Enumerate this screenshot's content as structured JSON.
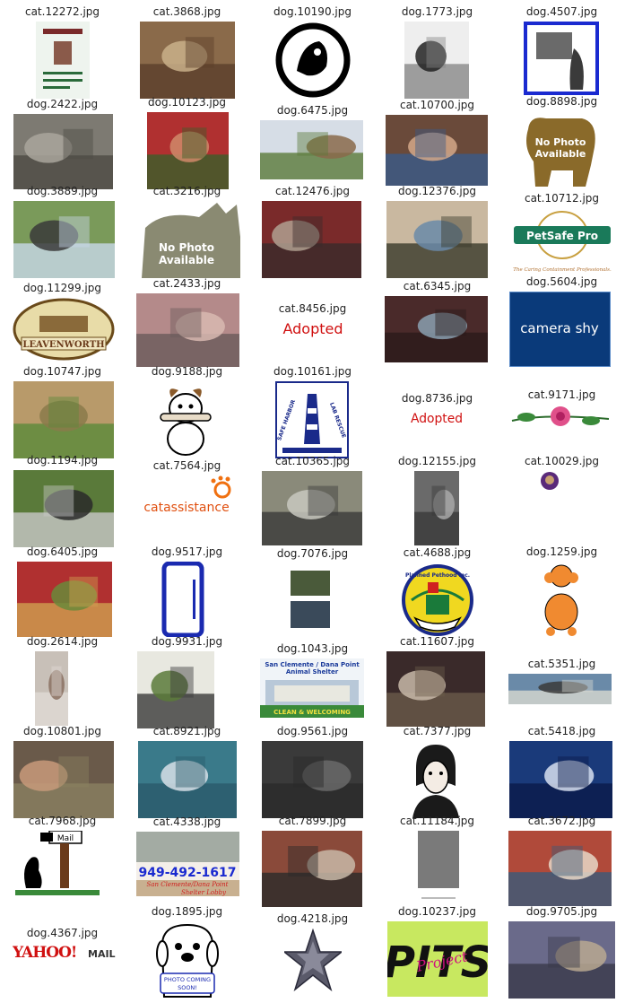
{
  "grid": {
    "columns": 5,
    "items": [
      {
        "label": "cat.12272.jpg",
        "art": "flyer"
      },
      {
        "label": "cat.3868.jpg",
        "art": "photo",
        "colors": [
          "#8a6a4a",
          "#c9b08a",
          "#5a3f2a"
        ]
      },
      {
        "label": "dog.10190.jpg",
        "art": "circle-logo"
      },
      {
        "label": "dog.1773.jpg",
        "art": "photo",
        "colors": [
          "#eeeeee",
          "#222222",
          "#888888"
        ]
      },
      {
        "label": "dog.4507.jpg",
        "art": "frame-sketch"
      },
      {
        "label": "dog.2422.jpg",
        "art": "photo",
        "colors": [
          "#7d7a72",
          "#a9a69c",
          "#4e4b44"
        ]
      },
      {
        "label": "dog.10123.jpg",
        "art": "photo",
        "colors": [
          "#b03030",
          "#d08a6a",
          "#3a5f2a"
        ]
      },
      {
        "label": "dog.6475.jpg",
        "art": "photo",
        "colors": [
          "#d6dde6",
          "#8a6a4a",
          "#5a7a3a"
        ]
      },
      {
        "label": "cat.10700.jpg",
        "art": "photo",
        "colors": [
          "#6a4a3a",
          "#d4a88a",
          "#3a5a8a"
        ]
      },
      {
        "label": "dog.8898.jpg",
        "art": "nophoto-dog",
        "text": [
          "No Photo",
          "Available"
        ]
      },
      {
        "label": "dog.3889.jpg",
        "art": "photo",
        "colors": [
          "#7a9a5a",
          "#3a3a3a",
          "#c8d8e8"
        ]
      },
      {
        "label": "cat.3216.jpg",
        "art": "nophoto-cat",
        "text": [
          "No Photo",
          "Available"
        ]
      },
      {
        "label": "cat.12476.jpg",
        "art": "photo",
        "colors": [
          "#7a2a2a",
          "#b0a090",
          "#3a2a2a"
        ]
      },
      {
        "label": "dog.12376.jpg",
        "art": "photo",
        "colors": [
          "#c9b8a0",
          "#6a8aa8",
          "#3a3a2a"
        ]
      },
      {
        "label": "cat.10712.jpg",
        "art": "petsafe",
        "text": [
          "PetSafe Pro",
          "The Caring Containment Professionals."
        ]
      },
      {
        "label": "dog.11299.jpg",
        "art": "badge",
        "text": [
          "LEAVENWORTH"
        ]
      },
      {
        "label": "cat.2433.jpg",
        "art": "photo",
        "colors": [
          "#b48a8a",
          "#d8b8b0",
          "#6a5a5a"
        ]
      },
      {
        "label": "cat.8456.jpg",
        "art": "adopted",
        "text": [
          "Adopted"
        ]
      },
      {
        "label": "cat.6345.jpg",
        "art": "photo",
        "colors": [
          "#4a2a2a",
          "#8aa0b0",
          "#2a1a1a"
        ]
      },
      {
        "label": "dog.5604.jpg",
        "art": "camerashy",
        "text": [
          "camera shy"
        ]
      },
      {
        "label": "dog.10747.jpg",
        "art": "photo",
        "colors": [
          "#b89a6a",
          "#8a7a4a",
          "#5a8a3a"
        ]
      },
      {
        "label": "dog.9188.jpg",
        "art": "cartoon-dog"
      },
      {
        "label": "dog.10161.jpg",
        "art": "lighthouse",
        "text": [
          "SAFE HARBOR",
          "LAB RESCUE"
        ]
      },
      {
        "label": "dog.8736.jpg",
        "art": "adopted",
        "text": [
          "Adopted"
        ]
      },
      {
        "label": "cat.9171.jpg",
        "art": "rose"
      },
      {
        "label": "dog.1194.jpg",
        "art": "photo",
        "colors": [
          "#5a7a3a",
          "#2a2a2a",
          "#c8c8c8"
        ]
      },
      {
        "label": "cat.7564.jpg",
        "art": "catassistance",
        "text": [
          "catassistance"
        ]
      },
      {
        "label": "cat.10365.jpg",
        "art": "photo",
        "colors": [
          "#8a8a7a",
          "#c8c8c0",
          "#3a3a3a"
        ]
      },
      {
        "label": "dog.12155.jpg",
        "art": "photo",
        "colors": [
          "#6a6a6a",
          "#a8a8a8",
          "#3a3a3a"
        ]
      },
      {
        "label": "cat.10029.jpg",
        "art": "tiny"
      },
      {
        "label": "dog.6405.jpg",
        "art": "photo",
        "colors": [
          "#b03030",
          "#6a8a3a",
          "#d0a050"
        ]
      },
      {
        "label": "dog.9517.jpg",
        "art": "plate"
      },
      {
        "label": "dog.7076.jpg",
        "art": "photo-pair"
      },
      {
        "label": "cat.4688.jpg",
        "art": "planned",
        "text": [
          "Planned Pethood Inc."
        ]
      },
      {
        "label": "dog.1259.jpg",
        "art": "poodle"
      },
      {
        "label": "dog.2614.jpg",
        "art": "photo",
        "colors": [
          "#c8c0b8",
          "#8a7060",
          "#e0dad4"
        ]
      },
      {
        "label": "dog.9931.jpg",
        "art": "photo",
        "colors": [
          "#e8e8e0",
          "#5a7a3a",
          "#3a3a3a"
        ]
      },
      {
        "label": "dog.1043.jpg",
        "art": "shelter",
        "text": [
          "San Clemente / Dana Point",
          "Animal Shelter",
          "CLEAN & WELCOMING"
        ]
      },
      {
        "label": "cat.11607.jpg",
        "art": "photo",
        "colors": [
          "#3a2a2a",
          "#c8b8a8",
          "#6a5a4a"
        ]
      },
      {
        "label": "cat.5351.jpg",
        "art": "photo",
        "colors": [
          "#6a8aa8",
          "#3a3a3a",
          "#d8d8d0"
        ]
      },
      {
        "label": "dog.10801.jpg",
        "art": "photo",
        "colors": [
          "#6a5a4a",
          "#c89a7a",
          "#8a8060"
        ]
      },
      {
        "label": "cat.8921.jpg",
        "art": "photo",
        "colors": [
          "#3a7a8a",
          "#d8e0e8",
          "#2a5a6a"
        ]
      },
      {
        "label": "dog.9561.jpg",
        "art": "photo",
        "colors": [
          "#3a3a3a",
          "#6a6a6a",
          "#2a2a2a"
        ]
      },
      {
        "label": "cat.7377.jpg",
        "art": "portrait"
      },
      {
        "label": "cat.5418.jpg",
        "art": "photo",
        "colors": [
          "#1a3a7a",
          "#d8e0f0",
          "#0a1a4a"
        ]
      },
      {
        "label": "cat.7968.jpg",
        "art": "mailbox",
        "text": [
          "Mail"
        ]
      },
      {
        "label": "cat.4338.jpg",
        "art": "phone",
        "text": [
          "949-492-1617",
          "San Clemente/Dana Point",
          "Shelter Lobby"
        ]
      },
      {
        "label": "cat.7899.jpg",
        "art": "photo",
        "colors": [
          "#8a4a3a",
          "#c8b8a8",
          "#2a2a2a"
        ]
      },
      {
        "label": "cat.11184.jpg",
        "art": "gray"
      },
      {
        "label": "cat.3672.jpg",
        "art": "photo",
        "colors": [
          "#b04a3a",
          "#e8d8c8",
          "#3a5a7a"
        ]
      },
      {
        "label": "dog.4367.jpg",
        "art": "yahoo",
        "text": [
          "YAHOO!",
          "MAIL"
        ]
      },
      {
        "label": "dog.1895.jpg",
        "art": "comingsoon",
        "text": [
          "PHOTO COMING",
          "SOON!"
        ]
      },
      {
        "label": "dog.4218.jpg",
        "art": "star"
      },
      {
        "label": "dog.10237.jpg",
        "art": "pits",
        "text": [
          "PITS",
          "Project"
        ]
      },
      {
        "label": "dog.9705.jpg",
        "art": "photo",
        "colors": [
          "#6a6a8a",
          "#b8a890",
          "#3a3a4a"
        ]
      }
    ]
  }
}
